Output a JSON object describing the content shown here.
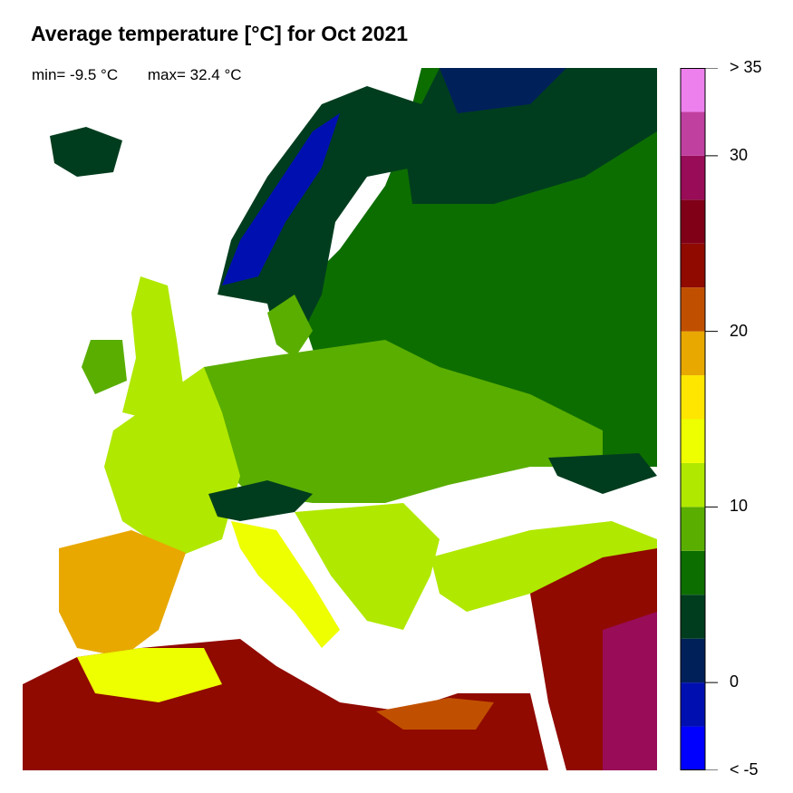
{
  "title": "Average temperature [°C] for Oct 2021",
  "stats": {
    "min": "min= -9.5 °C",
    "max": "max= 32.4 °C"
  },
  "legend": {
    "range": [
      -5,
      35
    ],
    "step": 2.5,
    "colors": [
      "#0000ff",
      "#0010b0",
      "#00205a",
      "#003d1e",
      "#0d6e00",
      "#5aae00",
      "#b0e800",
      "#eeff00",
      "#ffe600",
      "#e8a800",
      "#c05000",
      "#900a00",
      "#800018",
      "#980c58",
      "#c040a0",
      "#ee80ee"
    ],
    "ticks": [
      {
        "value": 35,
        "label": "> 35"
      },
      {
        "value": 30,
        "label": "30"
      },
      {
        "value": 20,
        "label": "20"
      },
      {
        "value": 10,
        "label": "10"
      },
      {
        "value": 0,
        "label": "0"
      },
      {
        "value": -5,
        "label": "< -5"
      }
    ]
  }
}
